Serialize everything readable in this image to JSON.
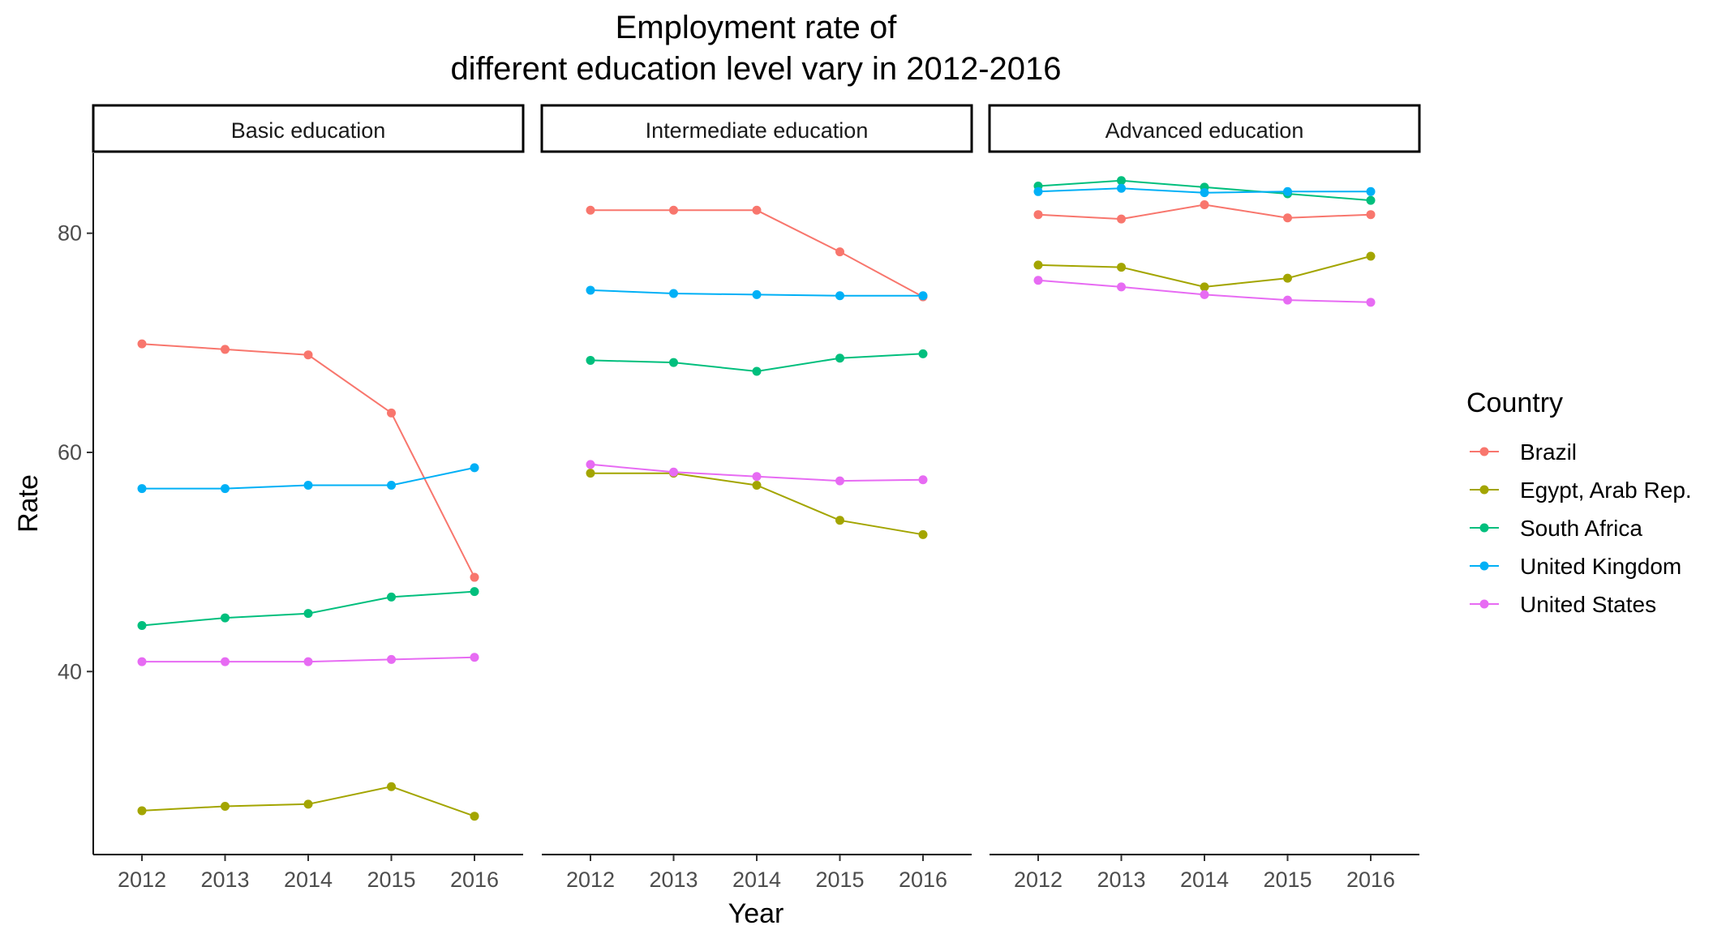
{
  "chart_data": {
    "type": "line",
    "title_lines": [
      "Employment rate of",
      "different education level vary in 2012-2016"
    ],
    "xlabel": "Year",
    "ylabel": "Rate",
    "x": [
      "2012",
      "2013",
      "2014",
      "2015",
      "2016"
    ],
    "yticks": [
      40,
      60,
      80
    ],
    "ylim": [
      23.3,
      87.3
    ],
    "grid": false,
    "legend_title": "Country",
    "legend_position": "right",
    "series_colors": {
      "Brazil": "#F8766D",
      "Egypt, Arab Rep.": "#A3A500",
      "South Africa": "#00BF7D",
      "United Kingdom": "#00B0F6",
      "United States": "#E76BF3"
    },
    "series_order": [
      "Brazil",
      "Egypt, Arab Rep.",
      "South Africa",
      "United Kingdom",
      "United States"
    ],
    "panels": [
      {
        "label": "Basic education",
        "series": [
          {
            "name": "Brazil",
            "values": [
              69.9,
              69.4,
              68.9,
              63.6,
              48.6
            ]
          },
          {
            "name": "Egypt, Arab Rep.",
            "values": [
              27.3,
              27.7,
              27.9,
              29.5,
              26.8
            ]
          },
          {
            "name": "South Africa",
            "values": [
              44.2,
              44.9,
              45.3,
              46.8,
              47.3
            ]
          },
          {
            "name": "United Kingdom",
            "values": [
              56.7,
              56.7,
              57.0,
              57.0,
              58.6
            ]
          },
          {
            "name": "United States",
            "values": [
              40.9,
              40.9,
              40.9,
              41.1,
              41.3
            ]
          }
        ]
      },
      {
        "label": "Intermediate education",
        "series": [
          {
            "name": "Brazil",
            "values": [
              82.1,
              82.1,
              82.1,
              78.3,
              74.2
            ]
          },
          {
            "name": "Egypt, Arab Rep.",
            "values": [
              58.1,
              58.1,
              57.0,
              53.8,
              52.5
            ]
          },
          {
            "name": "South Africa",
            "values": [
              68.4,
              68.2,
              67.4,
              68.6,
              69.0
            ]
          },
          {
            "name": "United Kingdom",
            "values": [
              74.8,
              74.5,
              74.4,
              74.3,
              74.3
            ]
          },
          {
            "name": "United States",
            "values": [
              58.9,
              58.2,
              57.8,
              57.4,
              57.5
            ]
          }
        ]
      },
      {
        "label": "Advanced education",
        "series": [
          {
            "name": "Brazil",
            "values": [
              81.7,
              81.3,
              82.6,
              81.4,
              81.7
            ]
          },
          {
            "name": "Egypt, Arab Rep.",
            "values": [
              77.1,
              76.9,
              75.1,
              75.9,
              77.9
            ]
          },
          {
            "name": "South Africa",
            "values": [
              84.3,
              84.8,
              84.2,
              83.6,
              83.0
            ]
          },
          {
            "name": "United Kingdom",
            "values": [
              83.8,
              84.1,
              83.7,
              83.8,
              83.8
            ]
          },
          {
            "name": "United States",
            "values": [
              75.7,
              75.1,
              74.4,
              73.9,
              73.7
            ]
          }
        ]
      }
    ]
  }
}
